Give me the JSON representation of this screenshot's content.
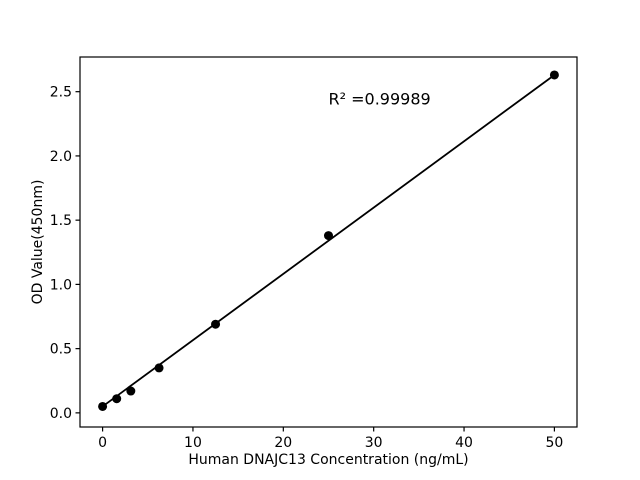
{
  "chart_data": {
    "type": "scatter",
    "title": "",
    "xlabel": "Human DNAJC13 Concentration (ng/mL)",
    "ylabel": "OD Value(450nm)",
    "x": [
      0,
      1.5625,
      3.125,
      6.25,
      12.5,
      25,
      50
    ],
    "y": [
      0.05,
      0.11,
      0.17,
      0.35,
      0.69,
      1.38,
      2.63
    ],
    "fit_line": {
      "x": [
        0,
        50
      ],
      "y": [
        0.05,
        2.63
      ]
    },
    "annotation": {
      "text": "R² =0.99989",
      "x": 25,
      "y": 2.4
    },
    "x_tick_values": [
      0,
      10,
      20,
      30,
      40,
      50
    ],
    "x_tick_labels": [
      "0",
      "10",
      "20",
      "30",
      "40",
      "50"
    ],
    "y_tick_values": [
      0,
      0.5,
      1,
      1.5,
      2,
      2.5
    ],
    "y_tick_labels": [
      "0.0",
      "0.5",
      "1.0",
      "1.5",
      "2.0",
      "2.5"
    ],
    "xlim": [
      -2.5,
      52.5
    ],
    "ylim": [
      -0.11,
      2.77
    ],
    "grid": false,
    "legend_position": "none",
    "colors": {
      "marker": "#000000",
      "line": "#000000",
      "spine": "#000000",
      "text": "#000000",
      "background": "#ffffff"
    }
  }
}
